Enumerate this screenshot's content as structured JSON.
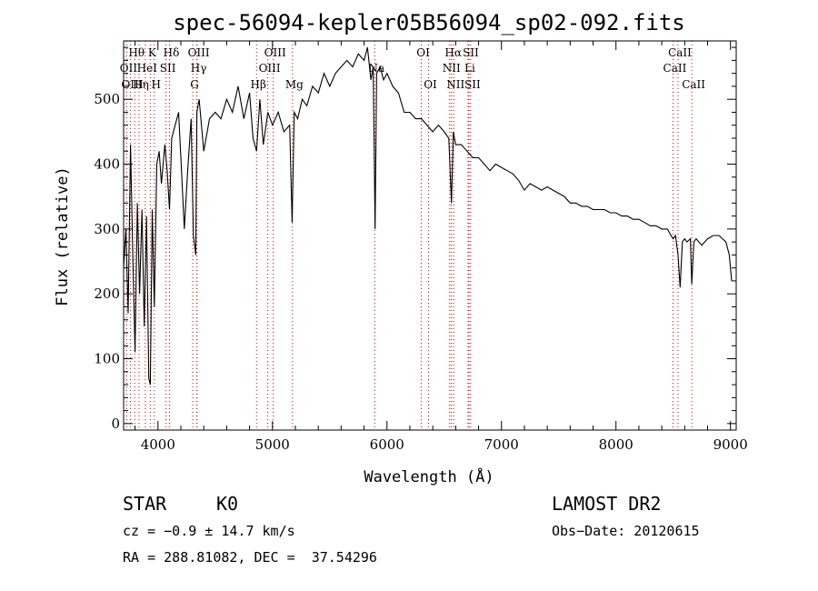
{
  "chart_data": {
    "type": "line",
    "title": "spec-56094-kepler05B56094_sp02-092.fits",
    "xlabel": "Wavelength (Å)",
    "ylabel": "Flux (relative)",
    "xlim": [
      3700,
      9050
    ],
    "ylim": [
      -10,
      590
    ],
    "x_ticks": [
      4000,
      5000,
      6000,
      7000,
      8000,
      9000
    ],
    "x_tick_labels": [
      "4000",
      "5000",
      "6000",
      "7000",
      "8000",
      "9000"
    ],
    "y_ticks": [
      0,
      100,
      200,
      300,
      400,
      500
    ],
    "y_tick_labels": [
      "0",
      "100",
      "200",
      "300",
      "400",
      "500"
    ],
    "grid": false,
    "series": [
      {
        "x": [
          3700,
          3720,
          3740,
          3760,
          3780,
          3800,
          3820,
          3840,
          3860,
          3880,
          3900,
          3920,
          3933,
          3950,
          3968,
          3990,
          4010,
          4030,
          4060,
          4080,
          4101,
          4120,
          4150,
          4180,
          4200,
          4230,
          4260,
          4290,
          4310,
          4330,
          4340,
          4360,
          4400,
          4450,
          4500,
          4550,
          4600,
          4650,
          4700,
          4750,
          4800,
          4830,
          4861,
          4890,
          4920,
          4960,
          5000,
          5050,
          5100,
          5150,
          5172,
          5190,
          5220,
          5260,
          5300,
          5350,
          5400,
          5450,
          5500,
          5550,
          5600,
          5650,
          5700,
          5750,
          5800,
          5830,
          5860,
          5880,
          5890,
          5896,
          5910,
          5940,
          5970,
          6000,
          6050,
          6100,
          6150,
          6200,
          6250,
          6300,
          6350,
          6400,
          6450,
          6500,
          6540,
          6563,
          6580,
          6600,
          6650,
          6700,
          6750,
          6800,
          6850,
          6900,
          6950,
          7000,
          7050,
          7100,
          7150,
          7200,
          7250,
          7300,
          7350,
          7400,
          7450,
          7500,
          7550,
          7600,
          7650,
          7700,
          7750,
          7800,
          7850,
          7900,
          7950,
          8000,
          8050,
          8100,
          8150,
          8200,
          8250,
          8300,
          8350,
          8400,
          8450,
          8480,
          8500,
          8520,
          8542,
          8560,
          8580,
          8600,
          8620,
          8650,
          8662,
          8680,
          8700,
          8750,
          8800,
          8850,
          8900,
          8930,
          8960,
          8990,
          9010
        ],
        "y": [
          240,
          300,
          170,
          430,
          260,
          110,
          340,
          200,
          330,
          150,
          320,
          70,
          60,
          330,
          180,
          400,
          420,
          370,
          430,
          390,
          330,
          440,
          460,
          480,
          410,
          300,
          390,
          470,
          290,
          260,
          480,
          500,
          420,
          470,
          480,
          470,
          500,
          480,
          520,
          470,
          510,
          440,
          420,
          500,
          430,
          480,
          460,
          480,
          450,
          460,
          310,
          480,
          470,
          500,
          490,
          520,
          510,
          540,
          520,
          540,
          550,
          560,
          550,
          570,
          560,
          580,
          530,
          550,
          400,
          300,
          540,
          550,
          530,
          540,
          520,
          510,
          480,
          480,
          470,
          470,
          460,
          450,
          460,
          450,
          440,
          340,
          450,
          430,
          430,
          420,
          410,
          410,
          400,
          390,
          400,
          395,
          390,
          385,
          375,
          360,
          370,
          365,
          360,
          365,
          360,
          355,
          350,
          340,
          340,
          335,
          335,
          330,
          330,
          330,
          325,
          325,
          320,
          320,
          315,
          315,
          310,
          305,
          305,
          300,
          300,
          290,
          285,
          290,
          260,
          210,
          280,
          285,
          280,
          285,
          215,
          280,
          285,
          275,
          285,
          290,
          290,
          285,
          280,
          260,
          220
        ]
      }
    ],
    "lines": [
      {
        "label": "Hθ",
        "x": 3797,
        "row": 0
      },
      {
        "label": "OII",
        "x": 3727,
        "row": 1
      },
      {
        "label": "OIII",
        "x": 3760,
        "row": 2
      },
      {
        "label": "Hη",
        "x": 3835,
        "row": 2
      },
      {
        "label": "HeI",
        "x": 3889,
        "row": 1
      },
      {
        "label": "K",
        "x": 3933,
        "row": 0
      },
      {
        "label": "H",
        "x": 3968,
        "row": 2
      },
      {
        "label": "SII",
        "x": 4070,
        "row": 1
      },
      {
        "label": "Hδ",
        "x": 4101,
        "row": 0
      },
      {
        "label": "OIII",
        "x": 4340,
        "row": 0
      },
      {
        "label": "Hγ",
        "x": 4340,
        "row": 1
      },
      {
        "label": "G",
        "x": 4304,
        "row": 2
      },
      {
        "label": "Hβ",
        "x": 4861,
        "row": 2
      },
      {
        "label": "OIII",
        "x": 4959,
        "row": 1
      },
      {
        "label": "OIII",
        "x": 5007,
        "row": 0
      },
      {
        "label": "Mg",
        "x": 5175,
        "row": 2
      },
      {
        "label": "Na",
        "x": 5893,
        "row": 1
      },
      {
        "label": "OI",
        "x": 6300,
        "row": 0
      },
      {
        "label": "OI",
        "x": 6363,
        "row": 2
      },
      {
        "label": "Hα",
        "x": 6563,
        "row": 0
      },
      {
        "label": "NII",
        "x": 6548,
        "row": 1
      },
      {
        "label": "NII",
        "x": 6583,
        "row": 2
      },
      {
        "label": "SII",
        "x": 6716,
        "row": 0
      },
      {
        "label": "Li",
        "x": 6708,
        "row": 1
      },
      {
        "label": "SII",
        "x": 6731,
        "row": 2
      },
      {
        "label": "CaII",
        "x": 8498,
        "row": 1
      },
      {
        "label": "CaII",
        "x": 8542,
        "row": 0
      },
      {
        "label": "CaII",
        "x": 8662,
        "row": 2
      }
    ]
  },
  "info": {
    "object_class": "STAR",
    "subclass": "K0",
    "survey": "LAMOST DR2",
    "redshift": "cz = −0.9 ± 14.7 km/s",
    "obs_date": "Obs−Date: 20120615",
    "coords": "RA = 288.81082, DEC =  37.54296"
  },
  "colors": {
    "background": "#ffffff",
    "foreground": "#000000",
    "line_marker": "#cc0000"
  }
}
